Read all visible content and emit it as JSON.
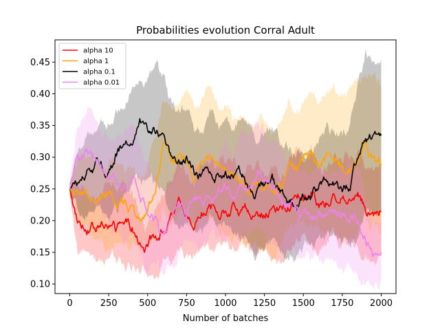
{
  "chart_data": {
    "type": "line",
    "title": "Probabilities evolution Corral Adult",
    "xlabel": "Number of batches",
    "ylabel": "",
    "xlim": [
      -95,
      2095
    ],
    "ylim": [
      0.085,
      0.485
    ],
    "xticks": [
      0,
      250,
      500,
      750,
      1000,
      1250,
      1500,
      1750,
      2000
    ],
    "yticks": [
      0.1,
      0.15,
      0.2,
      0.25,
      0.3,
      0.35,
      0.4,
      0.45
    ],
    "grid": false,
    "legend_position": "top-left",
    "series": [
      {
        "name": "alpha 10",
        "color": "#ff0000",
        "x": [
          0,
          50,
          100,
          150,
          200,
          250,
          300,
          350,
          400,
          450,
          500,
          550,
          600,
          650,
          700,
          750,
          800,
          850,
          900,
          950,
          1000,
          1050,
          1100,
          1150,
          1200,
          1250,
          1300,
          1350,
          1400,
          1450,
          1500,
          1550,
          1600,
          1650,
          1700,
          1750,
          1800,
          1850,
          1900,
          1950,
          2000
        ],
        "mean": [
          0.25,
          0.2,
          0.195,
          0.19,
          0.19,
          0.195,
          0.185,
          0.19,
          0.19,
          0.16,
          0.16,
          0.175,
          0.19,
          0.2,
          0.22,
          0.21,
          0.2,
          0.215,
          0.22,
          0.215,
          0.22,
          0.225,
          0.21,
          0.215,
          0.215,
          0.21,
          0.215,
          0.21,
          0.22,
          0.24,
          0.24,
          0.245,
          0.22,
          0.225,
          0.24,
          0.235,
          0.24,
          0.24,
          0.22,
          0.215,
          0.22
        ],
        "lower": [
          0.24,
          0.15,
          0.14,
          0.135,
          0.14,
          0.14,
          0.135,
          0.13,
          0.13,
          0.115,
          0.12,
          0.12,
          0.13,
          0.13,
          0.14,
          0.14,
          0.14,
          0.15,
          0.15,
          0.15,
          0.155,
          0.16,
          0.15,
          0.145,
          0.145,
          0.145,
          0.14,
          0.14,
          0.15,
          0.16,
          0.17,
          0.165,
          0.16,
          0.17,
          0.17,
          0.165,
          0.17,
          0.16,
          0.15,
          0.14,
          0.14
        ],
        "upper": [
          0.26,
          0.25,
          0.25,
          0.245,
          0.24,
          0.25,
          0.24,
          0.25,
          0.25,
          0.21,
          0.2,
          0.23,
          0.25,
          0.27,
          0.3,
          0.28,
          0.27,
          0.28,
          0.29,
          0.28,
          0.29,
          0.29,
          0.27,
          0.28,
          0.29,
          0.28,
          0.29,
          0.28,
          0.29,
          0.32,
          0.31,
          0.32,
          0.29,
          0.28,
          0.31,
          0.3,
          0.31,
          0.32,
          0.29,
          0.29,
          0.3
        ]
      },
      {
        "name": "alpha 1",
        "color": "#ffa500",
        "x": [
          0,
          50,
          100,
          150,
          200,
          250,
          300,
          350,
          400,
          450,
          500,
          550,
          600,
          650,
          700,
          750,
          800,
          850,
          900,
          950,
          1000,
          1050,
          1100,
          1150,
          1200,
          1250,
          1300,
          1350,
          1400,
          1450,
          1500,
          1550,
          1600,
          1650,
          1700,
          1750,
          1800,
          1850,
          1900,
          1950,
          2000
        ],
        "mean": [
          0.25,
          0.245,
          0.24,
          0.235,
          0.23,
          0.235,
          0.225,
          0.225,
          0.22,
          0.2,
          0.21,
          0.25,
          0.31,
          0.285,
          0.3,
          0.3,
          0.28,
          0.29,
          0.3,
          0.285,
          0.28,
          0.265,
          0.265,
          0.255,
          0.26,
          0.25,
          0.245,
          0.25,
          0.28,
          0.28,
          0.295,
          0.305,
          0.29,
          0.3,
          0.295,
          0.285,
          0.285,
          0.3,
          0.32,
          0.295,
          0.29
        ],
        "lower": [
          0.24,
          0.2,
          0.19,
          0.18,
          0.18,
          0.17,
          0.16,
          0.16,
          0.155,
          0.15,
          0.15,
          0.17,
          0.22,
          0.2,
          0.21,
          0.21,
          0.19,
          0.2,
          0.21,
          0.19,
          0.185,
          0.17,
          0.17,
          0.16,
          0.16,
          0.15,
          0.15,
          0.16,
          0.19,
          0.19,
          0.2,
          0.21,
          0.19,
          0.2,
          0.19,
          0.18,
          0.17,
          0.18,
          0.2,
          0.19,
          0.17
        ],
        "upper": [
          0.26,
          0.3,
          0.3,
          0.3,
          0.29,
          0.3,
          0.29,
          0.29,
          0.28,
          0.26,
          0.28,
          0.34,
          0.4,
          0.37,
          0.39,
          0.4,
          0.37,
          0.38,
          0.4,
          0.38,
          0.37,
          0.36,
          0.36,
          0.35,
          0.36,
          0.35,
          0.34,
          0.35,
          0.38,
          0.37,
          0.39,
          0.4,
          0.38,
          0.4,
          0.4,
          0.39,
          0.4,
          0.42,
          0.44,
          0.43,
          0.42
        ]
      },
      {
        "name": "alpha 0.1",
        "color": "#000000",
        "x": [
          0,
          50,
          100,
          150,
          200,
          250,
          300,
          350,
          400,
          450,
          500,
          550,
          600,
          650,
          700,
          750,
          800,
          850,
          900,
          950,
          1000,
          1050,
          1100,
          1150,
          1200,
          1250,
          1300,
          1350,
          1400,
          1450,
          1500,
          1550,
          1600,
          1650,
          1700,
          1750,
          1800,
          1850,
          1900,
          1950,
          2000
        ],
        "mean": [
          0.25,
          0.26,
          0.27,
          0.28,
          0.29,
          0.28,
          0.3,
          0.32,
          0.33,
          0.35,
          0.34,
          0.345,
          0.33,
          0.29,
          0.28,
          0.3,
          0.275,
          0.27,
          0.285,
          0.275,
          0.27,
          0.265,
          0.27,
          0.26,
          0.25,
          0.255,
          0.26,
          0.245,
          0.23,
          0.22,
          0.235,
          0.24,
          0.26,
          0.265,
          0.26,
          0.25,
          0.255,
          0.3,
          0.34,
          0.33,
          0.335
        ],
        "lower": [
          0.24,
          0.21,
          0.21,
          0.21,
          0.21,
          0.21,
          0.22,
          0.24,
          0.25,
          0.26,
          0.25,
          0.25,
          0.24,
          0.2,
          0.19,
          0.21,
          0.19,
          0.18,
          0.2,
          0.19,
          0.18,
          0.18,
          0.18,
          0.17,
          0.16,
          0.16,
          0.16,
          0.15,
          0.14,
          0.14,
          0.15,
          0.16,
          0.17,
          0.18,
          0.17,
          0.16,
          0.16,
          0.19,
          0.22,
          0.22,
          0.23
        ],
        "upper": [
          0.26,
          0.31,
          0.32,
          0.34,
          0.36,
          0.35,
          0.38,
          0.4,
          0.42,
          0.43,
          0.42,
          0.43,
          0.41,
          0.37,
          0.36,
          0.38,
          0.35,
          0.35,
          0.37,
          0.36,
          0.35,
          0.35,
          0.35,
          0.34,
          0.33,
          0.34,
          0.35,
          0.33,
          0.32,
          0.3,
          0.32,
          0.32,
          0.34,
          0.35,
          0.34,
          0.33,
          0.34,
          0.4,
          0.46,
          0.44,
          0.44
        ]
      },
      {
        "name": "alpha 0.01",
        "color": "#ee82ee",
        "x": [
          0,
          50,
          100,
          150,
          200,
          250,
          300,
          350,
          400,
          450,
          500,
          550,
          600,
          650,
          700,
          750,
          800,
          850,
          900,
          950,
          1000,
          1050,
          1100,
          1150,
          1200,
          1250,
          1300,
          1350,
          1400,
          1450,
          1500,
          1550,
          1600,
          1650,
          1700,
          1750,
          1800,
          1850,
          1900,
          1950,
          2000
        ],
        "mean": [
          0.25,
          0.29,
          0.3,
          0.295,
          0.285,
          0.26,
          0.255,
          0.25,
          0.26,
          0.24,
          0.21,
          0.2,
          0.18,
          0.19,
          0.22,
          0.215,
          0.23,
          0.23,
          0.235,
          0.24,
          0.25,
          0.24,
          0.255,
          0.26,
          0.27,
          0.26,
          0.245,
          0.235,
          0.225,
          0.215,
          0.21,
          0.205,
          0.21,
          0.21,
          0.21,
          0.205,
          0.21,
          0.2,
          0.17,
          0.15,
          0.155
        ],
        "lower": [
          0.24,
          0.22,
          0.24,
          0.22,
          0.22,
          0.19,
          0.18,
          0.17,
          0.18,
          0.17,
          0.14,
          0.13,
          0.12,
          0.13,
          0.15,
          0.15,
          0.16,
          0.16,
          0.17,
          0.17,
          0.18,
          0.17,
          0.18,
          0.18,
          0.19,
          0.18,
          0.17,
          0.16,
          0.15,
          0.14,
          0.14,
          0.13,
          0.14,
          0.14,
          0.14,
          0.13,
          0.13,
          0.12,
          0.11,
          0.1,
          0.11
        ],
        "upper": [
          0.26,
          0.36,
          0.37,
          0.37,
          0.36,
          0.33,
          0.33,
          0.33,
          0.34,
          0.31,
          0.28,
          0.27,
          0.25,
          0.26,
          0.29,
          0.28,
          0.3,
          0.3,
          0.31,
          0.31,
          0.32,
          0.31,
          0.33,
          0.34,
          0.35,
          0.34,
          0.32,
          0.31,
          0.3,
          0.29,
          0.28,
          0.28,
          0.28,
          0.28,
          0.28,
          0.28,
          0.29,
          0.28,
          0.24,
          0.21,
          0.21
        ]
      }
    ]
  }
}
